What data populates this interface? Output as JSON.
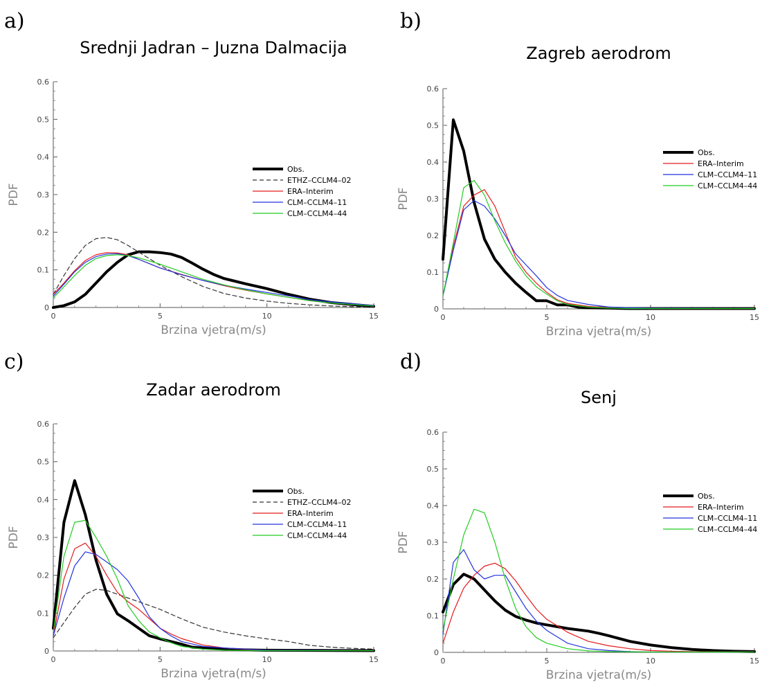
{
  "chart_data": [
    {
      "panel": "a)",
      "type": "line",
      "title": "Srednji Jadran – Juzna Dalmacija",
      "xlabel": "Brzina vjetra(m/s)",
      "ylabel": "PDF",
      "xlim": [
        0,
        15
      ],
      "ylim": [
        0,
        0.6
      ],
      "x_ticks": [
        "0",
        "5",
        "10",
        "15"
      ],
      "y_ticks": [
        "0",
        "0.1",
        "0.2",
        "0.3",
        "0.4",
        "0.5",
        "0.6"
      ],
      "legend_position": "right",
      "series": [
        {
          "name": "Obs.",
          "color": "#000000",
          "width": 4,
          "dash": "",
          "x": [
            0,
            0.5,
            1,
            1.5,
            2,
            2.5,
            3,
            3.5,
            4,
            4.5,
            5,
            5.5,
            6,
            6.5,
            7,
            7.5,
            8,
            8.5,
            9,
            10,
            11,
            12,
            13,
            14,
            15
          ],
          "y": [
            0,
            0.005,
            0.015,
            0.035,
            0.065,
            0.095,
            0.12,
            0.14,
            0.148,
            0.148,
            0.146,
            0.142,
            0.133,
            0.118,
            0.102,
            0.088,
            0.077,
            0.07,
            0.063,
            0.05,
            0.035,
            0.022,
            0.013,
            0.008,
            0.003
          ]
        },
        {
          "name": "ETHZ–CCLM4–02",
          "color": "#333333",
          "width": 1.2,
          "dash": "6 4",
          "x": [
            0,
            0.5,
            1,
            1.5,
            2,
            2.5,
            3,
            3.5,
            4,
            5,
            6,
            7,
            8,
            9,
            10,
            11,
            12,
            13,
            14,
            15
          ],
          "y": [
            0.035,
            0.085,
            0.13,
            0.165,
            0.183,
            0.186,
            0.18,
            0.165,
            0.147,
            0.112,
            0.082,
            0.056,
            0.037,
            0.025,
            0.017,
            0.011,
            0.007,
            0.004,
            0.002,
            0.001
          ]
        },
        {
          "name": "ERA–Interim",
          "color": "#e41a1c",
          "width": 1.2,
          "dash": "",
          "x": [
            0,
            0.5,
            1,
            1.5,
            2,
            2.5,
            3,
            3.5,
            4,
            5,
            6,
            7,
            8,
            9,
            10,
            11,
            12,
            13,
            14,
            15
          ],
          "y": [
            0.035,
            0.065,
            0.098,
            0.125,
            0.14,
            0.146,
            0.145,
            0.14,
            0.128,
            0.105,
            0.088,
            0.072,
            0.058,
            0.046,
            0.036,
            0.027,
            0.018,
            0.012,
            0.008,
            0.005
          ]
        },
        {
          "name": "CLM–CCLM4–11",
          "color": "#2233dd",
          "width": 1.2,
          "dash": "",
          "x": [
            0,
            0.5,
            1,
            1.5,
            2,
            2.5,
            3,
            3.5,
            4,
            5,
            6,
            7,
            8,
            9,
            10,
            11,
            12,
            13,
            14,
            15
          ],
          "y": [
            0.03,
            0.062,
            0.095,
            0.12,
            0.135,
            0.142,
            0.143,
            0.138,
            0.128,
            0.105,
            0.087,
            0.072,
            0.059,
            0.049,
            0.04,
            0.031,
            0.021,
            0.015,
            0.01,
            0.005
          ]
        },
        {
          "name": "CLM–CCLM4–44",
          "color": "#22cc22",
          "width": 1.2,
          "dash": "",
          "x": [
            0,
            0.5,
            1,
            1.5,
            2,
            2.5,
            3,
            3.5,
            4,
            5,
            6,
            7,
            8,
            9,
            10,
            11,
            12,
            13,
            14,
            15
          ],
          "y": [
            0.025,
            0.055,
            0.085,
            0.112,
            0.13,
            0.138,
            0.14,
            0.138,
            0.132,
            0.115,
            0.095,
            0.075,
            0.06,
            0.047,
            0.036,
            0.027,
            0.018,
            0.012,
            0.008,
            0.004
          ]
        }
      ]
    },
    {
      "panel": "b)",
      "type": "line",
      "title": "Zagreb aerodrom",
      "xlabel": "Brzina vjetra(m/s)",
      "ylabel": "PDF",
      "xlim": [
        0,
        15
      ],
      "ylim": [
        0,
        0.6
      ],
      "x_ticks": [
        "0",
        "5",
        "10",
        "15"
      ],
      "y_ticks": [
        "0",
        "0.1",
        "0.2",
        "0.3",
        "0.4",
        "0.5",
        "0.6"
      ],
      "legend_position": "right",
      "series": [
        {
          "name": "Obs.",
          "color": "#000000",
          "width": 4,
          "dash": "",
          "x": [
            0,
            0.5,
            1,
            1.5,
            2,
            2.5,
            3,
            3.5,
            4,
            4.5,
            5,
            5.5,
            6,
            6.5,
            7,
            8,
            9,
            10,
            15
          ],
          "y": [
            0.135,
            0.515,
            0.43,
            0.29,
            0.19,
            0.135,
            0.1,
            0.07,
            0.045,
            0.022,
            0.022,
            0.011,
            0.011,
            0.005,
            0.003,
            0.002,
            0.001,
            0.001,
            0.001
          ]
        },
        {
          "name": "ERA–Interim",
          "color": "#e41a1c",
          "width": 1.2,
          "dash": "",
          "x": [
            0,
            0.5,
            1,
            1.5,
            2,
            2.5,
            3,
            3.5,
            4,
            4.5,
            5,
            5.5,
            6,
            7,
            8,
            9,
            10,
            15
          ],
          "y": [
            0.035,
            0.17,
            0.28,
            0.31,
            0.325,
            0.28,
            0.21,
            0.14,
            0.1,
            0.07,
            0.045,
            0.025,
            0.015,
            0.007,
            0.003,
            0.002,
            0.001,
            0.001
          ]
        },
        {
          "name": "CLM–CCLM4–11",
          "color": "#2233dd",
          "width": 1.2,
          "dash": "",
          "x": [
            0,
            0.5,
            1,
            1.5,
            2,
            2.5,
            3,
            3.5,
            4,
            4.5,
            5,
            5.5,
            6,
            7,
            8,
            9,
            10,
            15
          ],
          "y": [
            0.035,
            0.16,
            0.27,
            0.295,
            0.28,
            0.245,
            0.2,
            0.15,
            0.12,
            0.09,
            0.058,
            0.037,
            0.023,
            0.012,
            0.005,
            0.003,
            0.002,
            0.001
          ]
        },
        {
          "name": "CLM–CCLM4–44",
          "color": "#22cc22",
          "width": 1.2,
          "dash": "",
          "x": [
            0,
            0.5,
            1,
            1.5,
            2,
            2.5,
            3,
            3.5,
            4,
            4.5,
            5,
            5.5,
            6,
            7,
            8,
            9,
            10,
            15
          ],
          "y": [
            0.035,
            0.18,
            0.33,
            0.35,
            0.31,
            0.24,
            0.18,
            0.13,
            0.09,
            0.06,
            0.04,
            0.022,
            0.012,
            0.005,
            0.002,
            0.001,
            0.001,
            0.001
          ]
        }
      ]
    },
    {
      "panel": "c)",
      "type": "line",
      "title": "Zadar aerodrom",
      "xlabel": "Brzina vjetra(m/s)",
      "ylabel": "PDF",
      "xlim": [
        0,
        15
      ],
      "ylim": [
        0,
        0.6
      ],
      "x_ticks": [
        "0",
        "5",
        "10",
        "15"
      ],
      "y_ticks": [
        "0",
        "0.1",
        "0.2",
        "0.3",
        "0.4",
        "0.5",
        "0.6"
      ],
      "legend_position": "right",
      "series": [
        {
          "name": "Obs.",
          "color": "#000000",
          "width": 4,
          "dash": "",
          "x": [
            0,
            0.5,
            1,
            1.5,
            2,
            2.5,
            3,
            3.5,
            4,
            4.5,
            5,
            5.5,
            6,
            6.5,
            7,
            8,
            9,
            10,
            15
          ],
          "y": [
            0.06,
            0.34,
            0.45,
            0.36,
            0.24,
            0.15,
            0.098,
            0.08,
            0.06,
            0.04,
            0.032,
            0.025,
            0.018,
            0.01,
            0.008,
            0.005,
            0.003,
            0.002,
            0.001
          ]
        },
        {
          "name": "ETHZ–CCLM4–02",
          "color": "#333333",
          "width": 1.2,
          "dash": "6 4",
          "x": [
            0,
            0.5,
            1,
            1.5,
            2,
            2.5,
            3,
            3.5,
            4,
            4.5,
            5,
            6,
            7,
            8,
            9,
            10,
            11,
            12,
            13,
            14,
            15
          ],
          "y": [
            0.035,
            0.075,
            0.115,
            0.15,
            0.163,
            0.16,
            0.15,
            0.14,
            0.13,
            0.12,
            0.11,
            0.085,
            0.063,
            0.05,
            0.04,
            0.032,
            0.025,
            0.015,
            0.01,
            0.007,
            0.005
          ]
        },
        {
          "name": "ERA–Interim",
          "color": "#e41a1c",
          "width": 1.2,
          "dash": "",
          "x": [
            0,
            0.5,
            1,
            1.5,
            2,
            2.5,
            3,
            3.5,
            4,
            4.5,
            5,
            5.5,
            6,
            7,
            8,
            9,
            10,
            15
          ],
          "y": [
            0.04,
            0.19,
            0.27,
            0.285,
            0.25,
            0.2,
            0.155,
            0.13,
            0.11,
            0.085,
            0.06,
            0.045,
            0.033,
            0.016,
            0.008,
            0.004,
            0.002,
            0.001
          ]
        },
        {
          "name": "CLM–CCLM4–11",
          "color": "#2233dd",
          "width": 1.2,
          "dash": "",
          "x": [
            0,
            0.5,
            1,
            1.5,
            2,
            2.5,
            3,
            3.5,
            4,
            4.5,
            5,
            5.5,
            6,
            7,
            8,
            9,
            10,
            15
          ],
          "y": [
            0.04,
            0.14,
            0.225,
            0.262,
            0.255,
            0.235,
            0.215,
            0.185,
            0.14,
            0.09,
            0.06,
            0.04,
            0.025,
            0.012,
            0.008,
            0.005,
            0.002,
            0.001
          ]
        },
        {
          "name": "CLM–CCLM4–44",
          "color": "#22cc22",
          "width": 1.2,
          "dash": "",
          "x": [
            0,
            0.5,
            1,
            1.5,
            2,
            2.5,
            3,
            3.5,
            4,
            4.5,
            5,
            5.5,
            6,
            7,
            8,
            9,
            10,
            15
          ],
          "y": [
            0.05,
            0.25,
            0.34,
            0.345,
            0.3,
            0.25,
            0.19,
            0.12,
            0.08,
            0.05,
            0.035,
            0.022,
            0.012,
            0.005,
            0.002,
            0.001,
            0.001,
            0.001
          ]
        }
      ]
    },
    {
      "panel": "d)",
      "type": "line",
      "title": "Senj",
      "xlabel": "Brzina vjetra(m/s)",
      "ylabel": "PDF",
      "xlim": [
        0,
        15
      ],
      "ylim": [
        0,
        0.6
      ],
      "x_ticks": [
        "0",
        "5",
        "10",
        "15"
      ],
      "y_ticks": [
        "0",
        "0.1",
        "0.2",
        "0.3",
        "0.4",
        "0.5",
        "0.6"
      ],
      "legend_position": "right",
      "series": [
        {
          "name": "Obs.",
          "color": "#000000",
          "width": 4,
          "dash": "",
          "x": [
            0,
            0.5,
            1,
            1.5,
            2,
            2.5,
            3,
            3.5,
            4,
            4.5,
            5,
            5.5,
            6,
            7,
            7.5,
            8,
            9,
            10,
            11,
            12,
            13,
            14,
            15
          ],
          "y": [
            0.11,
            0.185,
            0.213,
            0.2,
            0.17,
            0.14,
            0.115,
            0.098,
            0.088,
            0.08,
            0.075,
            0.07,
            0.065,
            0.058,
            0.052,
            0.045,
            0.03,
            0.02,
            0.013,
            0.008,
            0.005,
            0.003,
            0.002
          ]
        },
        {
          "name": "ERA–Interim",
          "color": "#e41a1c",
          "width": 1.2,
          "dash": "",
          "x": [
            0,
            0.5,
            1,
            1.5,
            2,
            2.5,
            3,
            3.5,
            4,
            4.5,
            5,
            6,
            7,
            8,
            9,
            10,
            11,
            12,
            15
          ],
          "y": [
            0.025,
            0.11,
            0.175,
            0.21,
            0.235,
            0.243,
            0.228,
            0.195,
            0.155,
            0.118,
            0.09,
            0.055,
            0.03,
            0.018,
            0.01,
            0.005,
            0.003,
            0.002,
            0.001
          ]
        },
        {
          "name": "CLM–CCLM4–11",
          "color": "#2233dd",
          "width": 1.2,
          "dash": "",
          "x": [
            0,
            0.5,
            1,
            1.5,
            2,
            2.5,
            3,
            3.5,
            4,
            4.5,
            5,
            6,
            7,
            8,
            9,
            10,
            15
          ],
          "y": [
            0.05,
            0.245,
            0.28,
            0.225,
            0.2,
            0.21,
            0.21,
            0.165,
            0.12,
            0.085,
            0.06,
            0.025,
            0.01,
            0.005,
            0.002,
            0.001,
            0.001
          ]
        },
        {
          "name": "CLM–CCLM4–44",
          "color": "#22cc22",
          "width": 1.2,
          "dash": "",
          "x": [
            0,
            0.5,
            1,
            1.5,
            2,
            2.5,
            3,
            3.5,
            4,
            4.5,
            5,
            6,
            7,
            8,
            10,
            15
          ],
          "y": [
            0.06,
            0.2,
            0.32,
            0.39,
            0.38,
            0.3,
            0.2,
            0.12,
            0.07,
            0.04,
            0.025,
            0.01,
            0.004,
            0.002,
            0.001,
            0.001
          ]
        }
      ]
    }
  ]
}
